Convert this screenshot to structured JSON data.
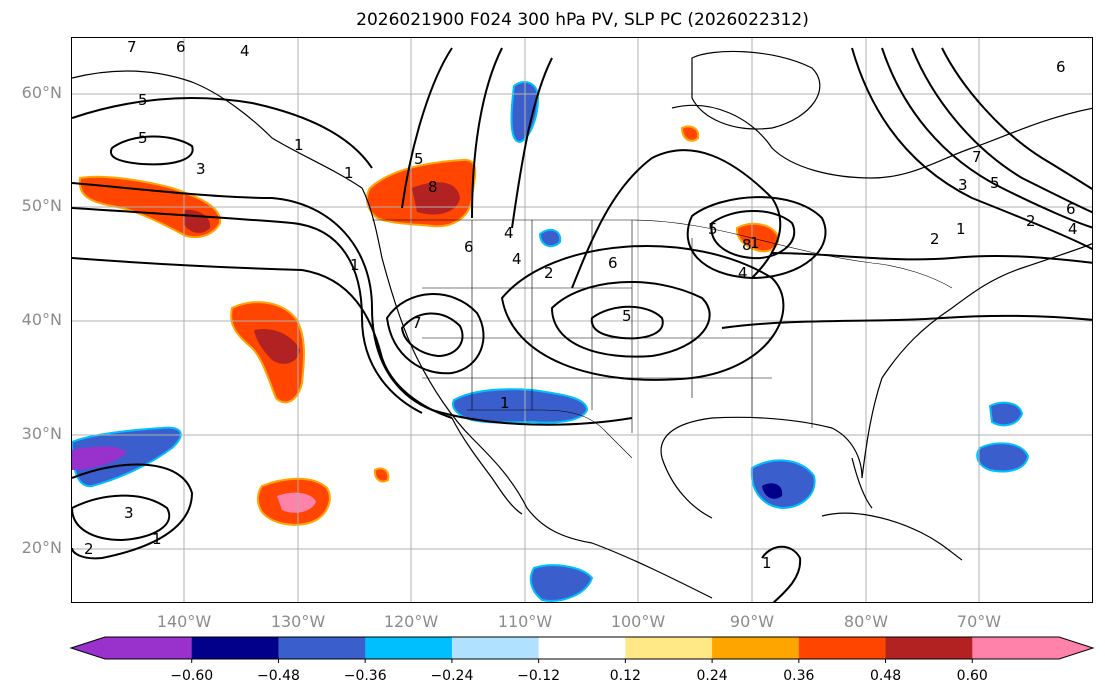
{
  "title": "2026021900 F024 300 hPa PV, SLP PC (2026022312)",
  "map": {
    "lat_labels": [
      "60°N",
      "50°N",
      "40°N",
      "30°N",
      "20°N"
    ],
    "lon_labels": [
      "140°W",
      "130°W",
      "120°W",
      "110°W",
      "100°W",
      "90°W",
      "80°W",
      "70°W"
    ],
    "grid": true,
    "contour_labels": [
      "7",
      "6",
      "4",
      "5",
      "3",
      "5",
      "1",
      "1",
      "5",
      "8",
      "6",
      "4",
      "5",
      "2",
      "5",
      "7",
      "4",
      "1",
      "2",
      "3",
      "1",
      "1",
      "2",
      "8",
      "5",
      "6",
      "6",
      "7",
      "1",
      "3",
      "2",
      "4",
      "6",
      "4",
      "1",
      "1"
    ]
  },
  "colorbar": {
    "ticks": [
      "−0.60",
      "−0.48",
      "−0.36",
      "−0.24",
      "−0.12",
      "0.12",
      "0.24",
      "0.36",
      "0.48",
      "0.60"
    ],
    "colors": [
      "#9932cc",
      "#00008b",
      "#3a5fcd",
      "#00bfff",
      "#b0e2ff",
      "#ffffff",
      "#ffe885",
      "#ffa500",
      "#ff4500",
      "#b22222",
      "#ff82ab",
      "#ff82ab"
    ]
  }
}
